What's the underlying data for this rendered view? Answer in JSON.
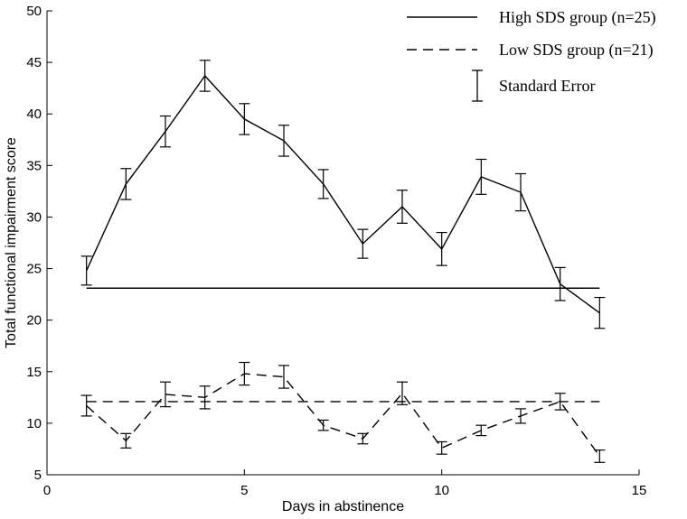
{
  "chart_data": {
    "type": "line",
    "xlabel": "Days in abstinence",
    "ylabel": "Total functional impairment score",
    "xlim": [
      0,
      15
    ],
    "ylim": [
      5,
      50
    ],
    "xticks": [
      0,
      5,
      10,
      15
    ],
    "yticks": [
      5,
      10,
      15,
      20,
      25,
      30,
      35,
      40,
      45,
      50
    ],
    "grid": false,
    "legend_position": "top-right",
    "legend_items": [
      {
        "label": "High SDS group (n=25)",
        "style": "solid"
      },
      {
        "label": "Low SDS group (n=21)",
        "style": "dashed"
      },
      {
        "label": "Standard Error",
        "style": "errorbar"
      }
    ],
    "series": [
      {
        "name": "High SDS group (n=25)",
        "style": "solid",
        "x": [
          1,
          2,
          3,
          4,
          5,
          6,
          7,
          8,
          9,
          10,
          11,
          12,
          13,
          14
        ],
        "y": [
          24.8,
          33.2,
          38.3,
          43.7,
          39.5,
          37.4,
          33.2,
          27.4,
          31.0,
          26.9,
          33.9,
          32.4,
          23.5,
          20.7
        ],
        "err": [
          1.4,
          1.5,
          1.5,
          1.5,
          1.5,
          1.5,
          1.4,
          1.4,
          1.6,
          1.6,
          1.7,
          1.8,
          1.6,
          1.5
        ],
        "mean_line": {
          "x": [
            1,
            14
          ],
          "y": 23.1
        }
      },
      {
        "name": "Low SDS group (n=21)",
        "style": "dashed",
        "x": [
          1,
          2,
          3,
          4,
          5,
          6,
          7,
          8,
          9,
          10,
          11,
          12,
          13,
          14
        ],
        "y": [
          11.7,
          8.3,
          12.8,
          12.5,
          14.8,
          14.5,
          9.8,
          8.5,
          12.9,
          7.6,
          9.3,
          10.7,
          12.1,
          6.8
        ],
        "err": [
          1.0,
          0.7,
          1.2,
          1.1,
          1.1,
          1.1,
          0.5,
          0.5,
          1.1,
          0.6,
          0.5,
          0.7,
          0.8,
          0.6
        ],
        "mean_line": {
          "x": [
            1,
            14
          ],
          "y": 12.1
        }
      }
    ]
  }
}
